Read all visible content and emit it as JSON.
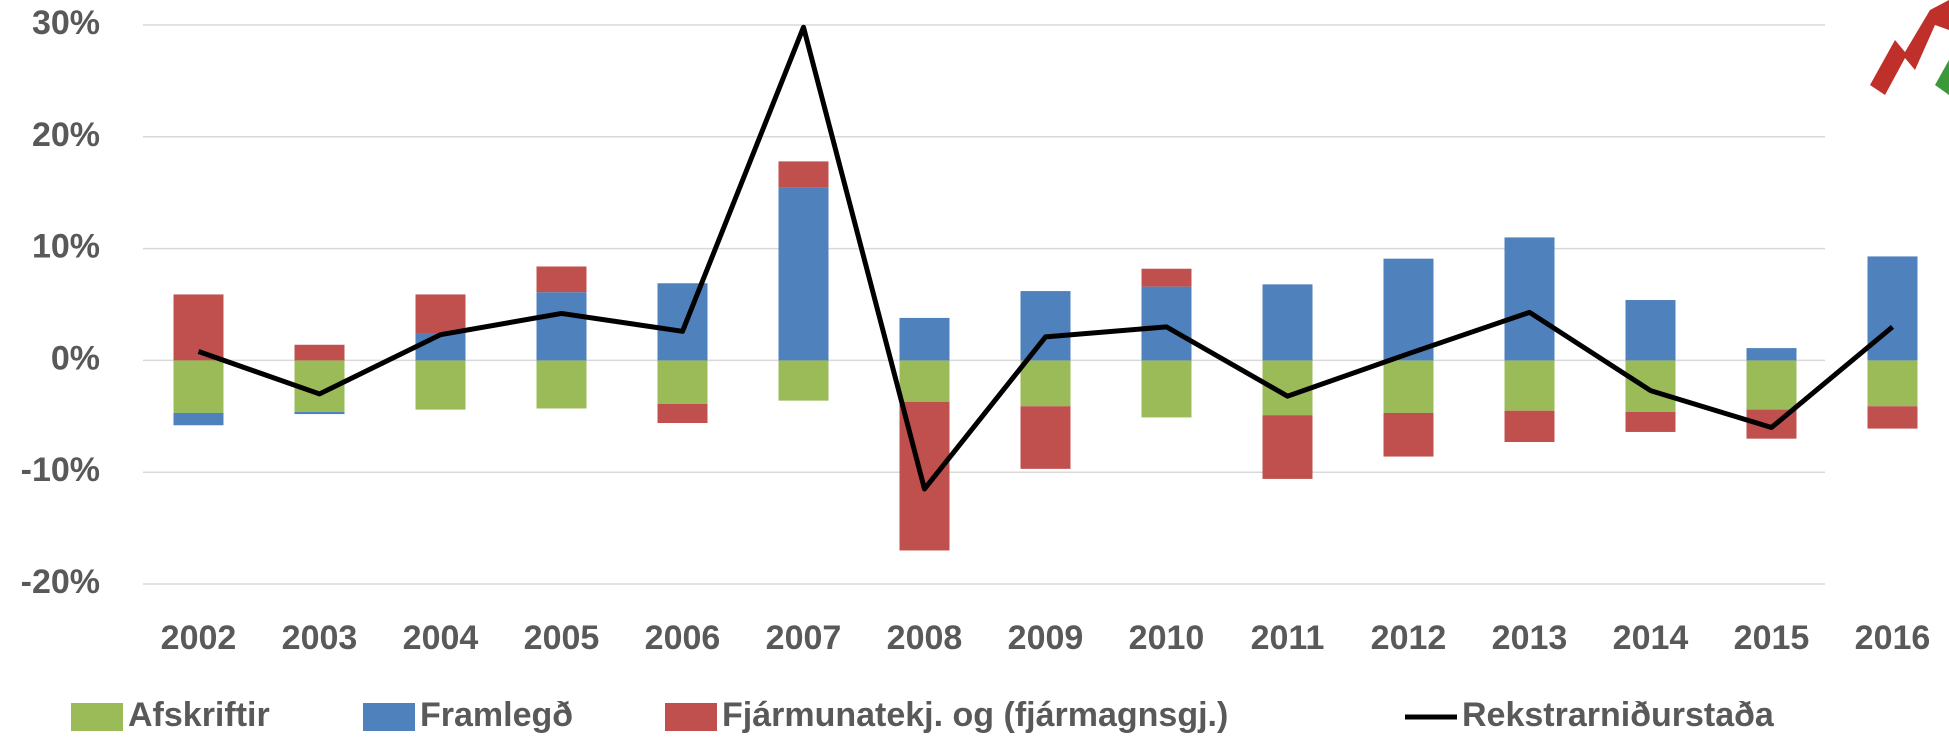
{
  "chart_data": {
    "type": "bar",
    "stacked": true,
    "categories": [
      "2002",
      "2003",
      "2004",
      "2005",
      "2006",
      "2007",
      "2008",
      "2009",
      "2010",
      "2011",
      "2012",
      "2013",
      "2014",
      "2015",
      "2016"
    ],
    "series": [
      {
        "name": "Afskriftir",
        "color": "#9bbb59",
        "values": [
          -4.7,
          -4.6,
          -4.4,
          -4.3,
          -3.9,
          -3.6,
          -3.7,
          -4.1,
          -5.1,
          -4.9,
          -4.7,
          -4.5,
          -4.6,
          -4.4,
          -4.1
        ]
      },
      {
        "name": "Framlegð",
        "color": "#4f81bd",
        "values": [
          -1.1,
          -0.2,
          2.4,
          6.1,
          6.9,
          15.5,
          3.8,
          6.2,
          6.6,
          6.8,
          9.1,
          11.0,
          5.4,
          1.1,
          9.3
        ]
      },
      {
        "name": "Fjármunatekj. og (fjármagnsgj.)",
        "color": "#c0504d",
        "values": [
          5.9,
          1.4,
          3.5,
          2.3,
          -1.7,
          2.3,
          -13.3,
          -5.6,
          1.6,
          -5.7,
          -3.9,
          -2.8,
          -1.8,
          -2.6,
          -2.0
        ]
      },
      {
        "name": "Rekstrarniðurstaða",
        "color": "#000000",
        "type": "line",
        "values": [
          0.8,
          -3.0,
          2.3,
          4.2,
          2.6,
          29.8,
          -11.5,
          2.1,
          3.0,
          -3.2,
          0.6,
          4.3,
          -2.7,
          -6.0,
          3.0
        ]
      }
    ],
    "ylim": [
      -20,
      30
    ],
    "yticks": [
      {
        "value": -20,
        "label": "-20%"
      },
      {
        "value": -10,
        "label": "-10%"
      },
      {
        "value": 0,
        "label": "0%"
      },
      {
        "value": 10,
        "label": "10%"
      },
      {
        "value": 20,
        "label": "20%"
      },
      {
        "value": 30,
        "label": "30%"
      }
    ],
    "grid": true
  }
}
